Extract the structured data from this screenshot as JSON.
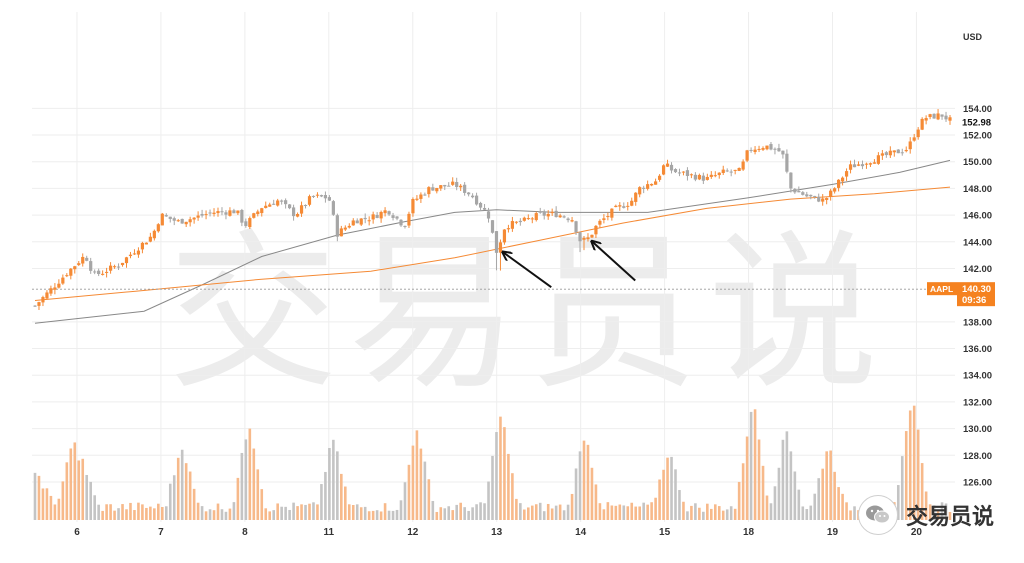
{
  "chart_data": {
    "type": "candlestick",
    "currency_label": "USD",
    "ticker_tag": {
      "symbol": "AAPL",
      "price": "140.30",
      "time": "09:36"
    },
    "last_price_tag": "152.98",
    "y_ticks": [
      "154.00",
      "152.00",
      "150.00",
      "148.00",
      "146.00",
      "144.00",
      "142.00",
      "138.00",
      "136.00",
      "134.00",
      "132.00",
      "130.00",
      "128.00",
      "126.00"
    ],
    "ylim": [
      124.5,
      156.5
    ],
    "x_ticks": [
      {
        "label": "6",
        "t": 5
      },
      {
        "label": "7",
        "t": 15
      },
      {
        "label": "8",
        "t": 25
      },
      {
        "label": "11",
        "t": 35
      },
      {
        "label": "12",
        "t": 45
      },
      {
        "label": "13",
        "t": 55
      },
      {
        "label": "14",
        "t": 65
      },
      {
        "label": "15",
        "t": 75
      },
      {
        "label": "18",
        "t": 85
      },
      {
        "label": "19",
        "t": 95
      },
      {
        "label": "20",
        "t": 105
      }
    ],
    "tmax": 109,
    "close_anchors": [
      [
        0,
        139.2
      ],
      [
        2,
        140.5
      ],
      [
        4,
        141.8
      ],
      [
        6,
        143.0
      ],
      [
        7,
        141.5
      ],
      [
        8,
        141.7
      ],
      [
        10,
        142.3
      ],
      [
        12,
        143.4
      ],
      [
        14,
        144.5
      ],
      [
        15,
        146.0
      ],
      [
        17,
        145.5
      ],
      [
        19,
        145.8
      ],
      [
        21,
        146.2
      ],
      [
        24,
        146.3
      ],
      [
        25,
        145.2
      ],
      [
        27,
        146.6
      ],
      [
        29,
        147.1
      ],
      [
        31,
        146.0
      ],
      [
        33,
        147.4
      ],
      [
        35,
        147.3
      ],
      [
        36,
        144.6
      ],
      [
        38,
        145.6
      ],
      [
        40,
        145.8
      ],
      [
        42,
        146.4
      ],
      [
        44,
        145.2
      ],
      [
        45,
        147.0
      ],
      [
        47,
        148.0
      ],
      [
        50,
        148.3
      ],
      [
        52,
        147.5
      ],
      [
        54,
        146.0
      ],
      [
        55,
        143.2
      ],
      [
        56,
        145.2
      ],
      [
        58,
        145.5
      ],
      [
        60,
        146.0
      ],
      [
        62,
        146.1
      ],
      [
        64,
        145.7
      ],
      [
        65,
        144.0
      ],
      [
        66,
        144.3
      ],
      [
        67,
        145.3
      ],
      [
        69,
        146.4
      ],
      [
        71,
        147.0
      ],
      [
        72,
        148.0
      ],
      [
        74,
        148.6
      ],
      [
        75,
        149.8
      ],
      [
        76,
        149.3
      ],
      [
        78,
        149.0
      ],
      [
        80,
        148.7
      ],
      [
        82,
        149.2
      ],
      [
        84,
        149.3
      ],
      [
        85,
        150.9
      ],
      [
        87,
        151.2
      ],
      [
        89,
        150.7
      ],
      [
        90,
        148.0
      ],
      [
        92,
        147.4
      ],
      [
        94,
        147.1
      ],
      [
        95,
        147.8
      ],
      [
        97,
        149.6
      ],
      [
        99,
        150.0
      ],
      [
        101,
        150.4
      ],
      [
        103,
        150.8
      ],
      [
        104,
        151.0
      ],
      [
        105,
        152.4
      ],
      [
        106,
        153.3
      ],
      [
        108,
        153.5
      ],
      [
        109,
        153.1
      ]
    ],
    "ma_long": [
      [
        0,
        137.9
      ],
      [
        13,
        138.8
      ],
      [
        20,
        140.8
      ],
      [
        27,
        142.9
      ],
      [
        36,
        144.5
      ],
      [
        44,
        145.5
      ],
      [
        50,
        146.2
      ],
      [
        55,
        146.4
      ],
      [
        62,
        146.2
      ],
      [
        73,
        146.2
      ],
      [
        85,
        147.3
      ],
      [
        95,
        148.3
      ],
      [
        103,
        149.2
      ],
      [
        109,
        150.1
      ]
    ],
    "ma_short": [
      [
        0,
        139.6
      ],
      [
        12,
        140.3
      ],
      [
        27,
        141.2
      ],
      [
        40,
        141.8
      ],
      [
        50,
        142.8
      ],
      [
        60,
        144.1
      ],
      [
        70,
        145.4
      ],
      [
        80,
        146.5
      ],
      [
        90,
        147.2
      ],
      [
        100,
        147.6
      ],
      [
        109,
        148.1
      ]
    ],
    "volume_spikes": [
      [
        0.3,
        0.3
      ],
      [
        4.5,
        0.6
      ],
      [
        5.5,
        0.45
      ],
      [
        17.5,
        0.55
      ],
      [
        25.5,
        0.75
      ],
      [
        35.5,
        0.6
      ],
      [
        45.5,
        0.7
      ],
      [
        55.5,
        0.85
      ],
      [
        65.5,
        0.65
      ],
      [
        75.5,
        0.5
      ],
      [
        85.5,
        0.95
      ],
      [
        89.5,
        0.68
      ],
      [
        94.5,
        0.55
      ],
      [
        104.5,
        1.0
      ]
    ],
    "arrows": [
      {
        "from_t": 61.5,
        "from_p": 140.6,
        "to_t": 55.8,
        "to_p": 143.2
      },
      {
        "from_t": 71.5,
        "from_p": 141.1,
        "to_t": 66.4,
        "to_p": 144.0
      }
    ]
  },
  "watermark": {
    "text": "交易员说"
  },
  "badge": {
    "icon": "wechat-icon",
    "text": "交易员说"
  },
  "colors": {
    "up": "#f58a35",
    "down": "#a6a6a6",
    "ma_short": "#f58a35",
    "ma_long": "#888888",
    "tag": "#f58220",
    "grid": "#eeeeee"
  }
}
